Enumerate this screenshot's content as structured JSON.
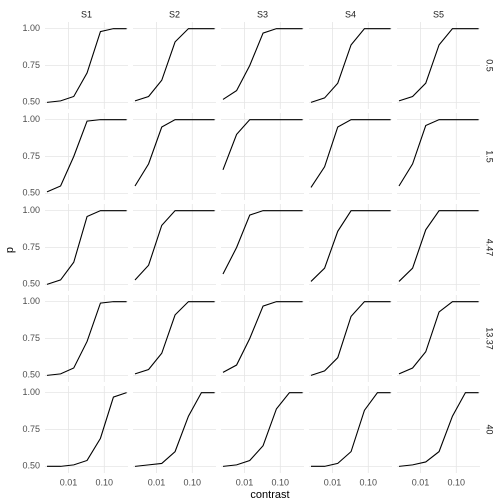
{
  "chart_data": {
    "type": "line",
    "xlabel": "contrast",
    "ylabel": "p",
    "facet_cols": [
      "S1",
      "S2",
      "S3",
      "S4",
      "S5"
    ],
    "facet_rows": [
      "0.5",
      "1.5",
      "4.47",
      "13.37",
      "40"
    ],
    "x": [
      0.0025,
      0.006,
      0.014,
      0.033,
      0.078,
      0.18,
      0.42
    ],
    "xlim": [
      0.0022,
      0.46
    ],
    "xlog": true,
    "xticks": [
      0.01,
      {
        "value": 0.1,
        "label": "0.10"
      }
    ],
    "ylim": [
      0.455,
      1.045
    ],
    "yticks": [
      {
        "value": 0.5,
        "label": "0.50"
      },
      {
        "value": 0.75,
        "label": "0.75"
      },
      {
        "value": 1,
        "label": "1.00"
      }
    ],
    "grid": true,
    "color": "#000000",
    "series": [
      {
        "values": [
          0.5,
          0.51,
          0.54,
          0.7,
          0.98,
          1,
          1
        ]
      },
      {
        "values": [
          0.51,
          0.54,
          0.65,
          0.91,
          1,
          1,
          1
        ]
      },
      {
        "values": [
          0.52,
          0.58,
          0.75,
          0.97,
          1,
          1,
          1
        ]
      },
      {
        "values": [
          0.5,
          0.53,
          0.63,
          0.89,
          1,
          1,
          1
        ]
      },
      {
        "values": [
          0.51,
          0.54,
          0.63,
          0.89,
          1,
          1,
          1
        ]
      },
      {
        "values": [
          0.51,
          0.55,
          0.75,
          0.99,
          1,
          1,
          1
        ]
      },
      {
        "values": [
          0.55,
          0.7,
          0.95,
          1,
          1,
          1,
          1
        ]
      },
      {
        "values": [
          0.66,
          0.9,
          1,
          1,
          1,
          1,
          1
        ]
      },
      {
        "values": [
          0.54,
          0.68,
          0.95,
          1,
          1,
          1,
          1
        ]
      },
      {
        "values": [
          0.55,
          0.7,
          0.96,
          1,
          1,
          1,
          1
        ]
      },
      {
        "values": [
          0.5,
          0.53,
          0.65,
          0.96,
          1,
          1,
          1
        ]
      },
      {
        "values": [
          0.53,
          0.63,
          0.9,
          1,
          1,
          1,
          1
        ]
      },
      {
        "values": [
          0.57,
          0.75,
          0.97,
          1,
          1,
          1,
          1
        ]
      },
      {
        "values": [
          0.52,
          0.61,
          0.86,
          1,
          1,
          1,
          1
        ]
      },
      {
        "values": [
          0.52,
          0.61,
          0.87,
          1,
          1,
          1,
          1
        ]
      },
      {
        "values": [
          0.5,
          0.51,
          0.55,
          0.73,
          0.99,
          1,
          1
        ]
      },
      {
        "values": [
          0.51,
          0.54,
          0.65,
          0.91,
          1,
          1,
          1
        ]
      },
      {
        "values": [
          0.52,
          0.57,
          0.75,
          0.97,
          1,
          1,
          1
        ]
      },
      {
        "values": [
          0.5,
          0.53,
          0.62,
          0.9,
          1,
          1,
          1
        ]
      },
      {
        "values": [
          0.51,
          0.55,
          0.66,
          0.93,
          1,
          1,
          1
        ]
      },
      {
        "values": [
          0.5,
          0.5,
          0.51,
          0.54,
          0.69,
          0.97,
          1
        ]
      },
      {
        "values": [
          0.5,
          0.51,
          0.52,
          0.6,
          0.84,
          1,
          1
        ]
      },
      {
        "values": [
          0.5,
          0.51,
          0.54,
          0.64,
          0.89,
          1,
          1
        ]
      },
      {
        "values": [
          0.5,
          0.5,
          0.52,
          0.6,
          0.88,
          1,
          1
        ]
      },
      {
        "values": [
          0.5,
          0.51,
          0.53,
          0.6,
          0.84,
          1,
          1
        ]
      }
    ]
  }
}
